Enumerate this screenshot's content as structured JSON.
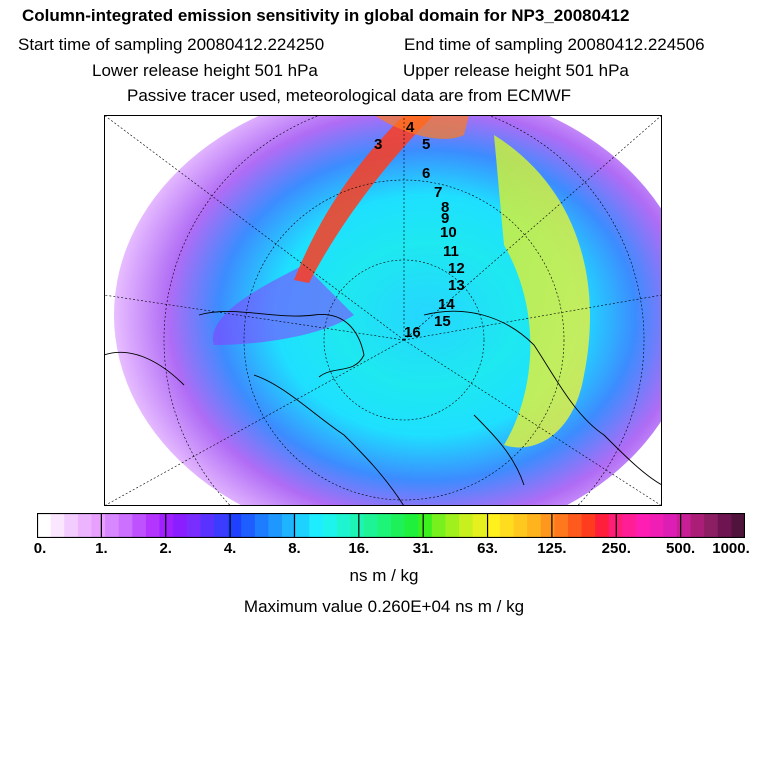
{
  "header": {
    "title": "Column-integrated emission sensitivity in global domain for NP3_20080412",
    "start_time": "Start time of sampling 20080412.224250",
    "end_time": "End time of sampling 20080412.224506",
    "lower_release": "Lower release height  501 hPa",
    "upper_release": "Upper release height  501 hPa",
    "tracer_info": "Passive tracer used, meteorological data are from ECMWF"
  },
  "map": {
    "projection": "polar stereographic (north pole)",
    "trajectory_labels": [
      "3",
      "4",
      "5",
      "6",
      "7",
      "8",
      "9",
      "10",
      "11",
      "12",
      "13",
      "14",
      "15",
      "16"
    ],
    "colors": {
      "low": "#b97cf0",
      "mid": "#1fe0f5",
      "high": "#e6f046",
      "peak": "#ff2a2a"
    }
  },
  "colorbar": {
    "tick_labels": [
      "0.",
      "1.",
      "2.",
      "4.",
      "8.",
      "16.",
      "31.",
      "63.",
      "125.",
      "250.",
      "500.",
      "1000."
    ],
    "colors": [
      "#ffffff",
      "#fbe6ff",
      "#f3ccff",
      "#ecb4ff",
      "#e8a0ff",
      "#d888ff",
      "#cc70ff",
      "#bf52ff",
      "#b335ff",
      "#a020ff",
      "#8a1eff",
      "#7a2dff",
      "#5a32ff",
      "#3c3cff",
      "#1e40ff",
      "#1e5eff",
      "#1e7cff",
      "#1e98ff",
      "#1eb4ff",
      "#1ed2ff",
      "#1eecff",
      "#1ef4ec",
      "#1ef4d0",
      "#1ef4b4",
      "#1ef496",
      "#1ef478",
      "#1ef05a",
      "#1ef03c",
      "#3cf01e",
      "#78f01e",
      "#a0f01e",
      "#c8f01e",
      "#e6f01e",
      "#fff01e",
      "#ffdc1e",
      "#ffc81e",
      "#ffb41e",
      "#ff961e",
      "#ff781e",
      "#ff5a1e",
      "#ff3c1e",
      "#ff1e3c",
      "#ff1e78",
      "#ff1e96",
      "#ff1eb4",
      "#f01eb4",
      "#dc1eb4",
      "#c81e96",
      "#aa1e78",
      "#8c1e64",
      "#6e1450",
      "#50143c"
    ],
    "units": "ns m / kg"
  },
  "footer": {
    "max_value": "Maximum value  0.260E+04 ns m / kg"
  }
}
